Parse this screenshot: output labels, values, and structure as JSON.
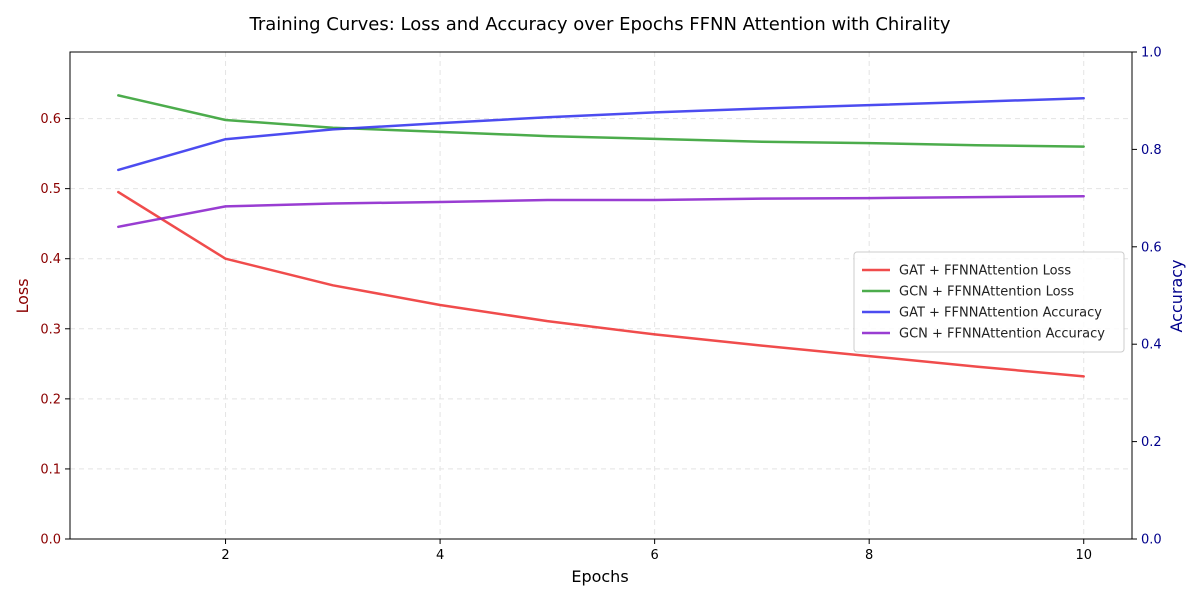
{
  "chart_data": {
    "type": "line",
    "title": "Training Curves: Loss and Accuracy over Epochs FFNN Attention with Chirality",
    "xlabel": "Epochs",
    "ylabel_left": "Loss",
    "ylabel_right": "Accuracy",
    "x": [
      1,
      2,
      3,
      4,
      5,
      6,
      7,
      8,
      9,
      10
    ],
    "xlim": [
      0.55,
      10.45
    ],
    "xticks": [
      "2",
      "4",
      "6",
      "8",
      "10"
    ],
    "ylim_left": [
      0,
      0.695
    ],
    "yticks_left": [
      "0.0",
      "0.1",
      "0.2",
      "0.3",
      "0.4",
      "0.5",
      "0.6"
    ],
    "ylim_right": [
      0,
      1.0
    ],
    "yticks_right": [
      "0.0",
      "0.2",
      "0.4",
      "0.6",
      "0.8",
      "1.0"
    ],
    "grid": true,
    "legend_position": "center-right",
    "colors": {
      "left_axis": "#8b0000",
      "right_axis": "#00008b"
    },
    "series": [
      {
        "name": "GAT + FFNNAttention Loss",
        "axis": "left",
        "color": "#ee3333",
        "values": [
          0.495,
          0.4,
          0.362,
          0.334,
          0.311,
          0.292,
          0.276,
          0.261,
          0.246,
          0.232
        ]
      },
      {
        "name": "GCN + FFNNAttention Loss",
        "axis": "left",
        "color": "#33a033",
        "values": [
          0.633,
          0.598,
          0.587,
          0.581,
          0.575,
          0.571,
          0.567,
          0.565,
          0.562,
          0.56
        ]
      },
      {
        "name": "GAT + FFNNAttention Accuracy",
        "axis": "right",
        "color": "#3333ee",
        "values": [
          0.758,
          0.821,
          0.841,
          0.854,
          0.866,
          0.876,
          0.884,
          0.891,
          0.898,
          0.905
        ]
      },
      {
        "name": "GCN + FFNNAttention Accuracy",
        "axis": "right",
        "color": "#8b22cc",
        "values": [
          0.641,
          0.683,
          0.689,
          0.692,
          0.696,
          0.696,
          0.699,
          0.7,
          0.702,
          0.704
        ]
      }
    ]
  }
}
